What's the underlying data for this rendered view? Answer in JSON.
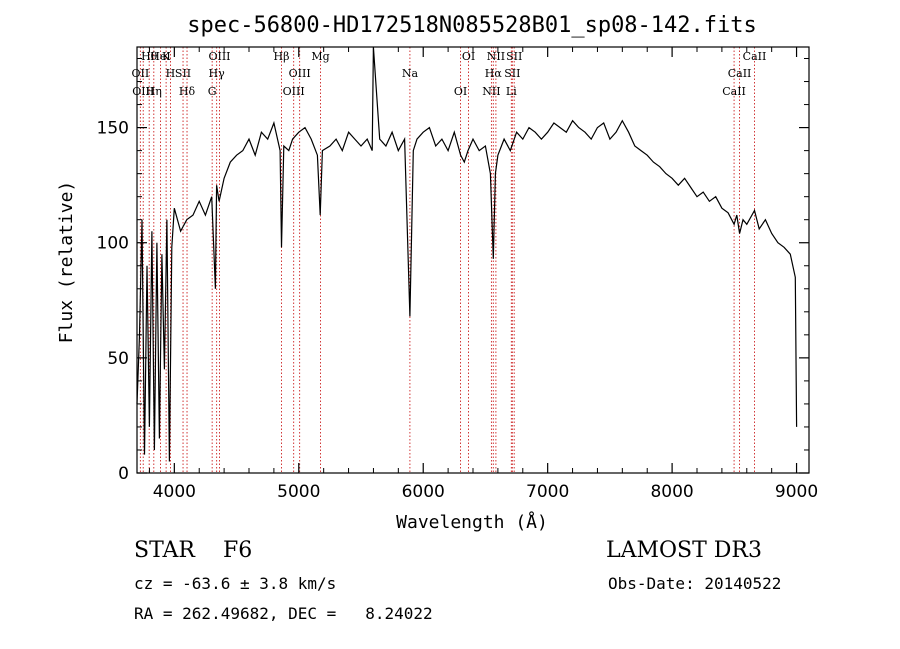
{
  "chart_data": {
    "type": "line",
    "title": "spec-56800-HD172518N085528B01_sp08-142.fits",
    "xlabel": "Wavelength (Å)",
    "ylabel": "Flux (relative)",
    "xlim": [
      3700,
      9100
    ],
    "ylim": [
      0,
      185
    ],
    "xticks": [
      4000,
      5000,
      6000,
      7000,
      8000,
      9000
    ],
    "yticks": [
      0,
      50,
      100,
      150
    ],
    "grid": false,
    "legend": "none",
    "line_color": "#000000",
    "marker_color": "#cc2222",
    "series": [
      {
        "x": [
          3700,
          3720,
          3740,
          3760,
          3780,
          3800,
          3820,
          3840,
          3860,
          3880,
          3900,
          3920,
          3940,
          3960,
          3980,
          4000,
          4050,
          4100,
          4150,
          4200,
          4250,
          4300,
          4330,
          4340,
          4360,
          4400,
          4450,
          4500,
          4550,
          4600,
          4650,
          4700,
          4750,
          4800,
          4850,
          4861,
          4880,
          4920,
          4950,
          5000,
          5050,
          5100,
          5150,
          5172,
          5190,
          5250,
          5300,
          5350,
          5400,
          5450,
          5500,
          5550,
          5590,
          5600,
          5650,
          5700,
          5750,
          5800,
          5850,
          5893,
          5920,
          5950,
          6000,
          6050,
          6100,
          6150,
          6200,
          6250,
          6300,
          6330,
          6360,
          6400,
          6450,
          6500,
          6540,
          6563,
          6580,
          6600,
          6650,
          6700,
          6750,
          6800,
          6850,
          6900,
          6950,
          7000,
          7050,
          7100,
          7150,
          7200,
          7250,
          7300,
          7350,
          7400,
          7450,
          7500,
          7550,
          7600,
          7650,
          7700,
          7750,
          7800,
          7850,
          7900,
          7950,
          8000,
          8050,
          8100,
          8150,
          8200,
          8250,
          8300,
          8350,
          8400,
          8450,
          8498,
          8520,
          8542,
          8570,
          8600,
          8662,
          8700,
          8750,
          8800,
          8850,
          8900,
          8950,
          8990,
          9000
        ],
        "y": [
          30,
          60,
          110,
          8,
          90,
          20,
          105,
          10,
          100,
          15,
          95,
          45,
          110,
          5,
          98,
          115,
          105,
          110,
          112,
          118,
          112,
          120,
          80,
          125,
          118,
          128,
          135,
          138,
          140,
          145,
          138,
          148,
          145,
          152,
          140,
          98,
          142,
          140,
          145,
          148,
          150,
          145,
          138,
          112,
          140,
          142,
          145,
          140,
          148,
          145,
          142,
          145,
          140,
          185,
          145,
          142,
          148,
          140,
          145,
          68,
          140,
          145,
          148,
          150,
          142,
          145,
          140,
          148,
          138,
          135,
          140,
          145,
          140,
          142,
          130,
          93,
          130,
          138,
          145,
          140,
          148,
          145,
          150,
          148,
          145,
          148,
          152,
          150,
          148,
          153,
          150,
          148,
          145,
          150,
          152,
          145,
          148,
          153,
          148,
          142,
          140,
          138,
          135,
          133,
          130,
          128,
          125,
          128,
          124,
          120,
          122,
          118,
          120,
          115,
          113,
          108,
          112,
          104,
          110,
          108,
          114,
          106,
          110,
          104,
          100,
          98,
          95,
          85,
          20
        ]
      }
    ],
    "spectral_lines": [
      {
        "label": "Hθ",
        "wl": 3798
      },
      {
        "label": "OII",
        "wl": 3727
      },
      {
        "label": "OIII",
        "wl": 3750
      },
      {
        "label": "K",
        "wl": 3934
      },
      {
        "label": "H",
        "wl": 3969
      },
      {
        "label": "Hη",
        "wl": 3835
      },
      {
        "label": "HeI",
        "wl": 3889
      },
      {
        "label": "SII",
        "wl": 4070
      },
      {
        "label": "Hδ",
        "wl": 4102
      },
      {
        "label": "OIII",
        "wl": 4363
      },
      {
        "label": "Hγ",
        "wl": 4340
      },
      {
        "label": "G",
        "wl": 4304
      },
      {
        "label": "Hβ",
        "wl": 4861
      },
      {
        "label": "OIII",
        "wl": 5007
      },
      {
        "label": "OIII",
        "wl": 4959
      },
      {
        "label": "Mg",
        "wl": 5175
      },
      {
        "label": "Na",
        "wl": 5893
      },
      {
        "label": "OI",
        "wl": 6300
      },
      {
        "label": "OI",
        "wl": 6364
      },
      {
        "label": "Hα",
        "wl": 6563
      },
      {
        "label": "NII",
        "wl": 6548
      },
      {
        "label": "NII",
        "wl": 6584
      },
      {
        "label": "SII",
        "wl": 6716
      },
      {
        "label": "Li",
        "wl": 6708
      },
      {
        "label": "SII",
        "wl": 6731
      },
      {
        "label": "CaII",
        "wl": 8542
      },
      {
        "label": "CaII",
        "wl": 8498
      },
      {
        "label": "CaII",
        "wl": 8662
      }
    ]
  },
  "info": {
    "obj_class": "STAR    F6",
    "survey": "LAMOST DR3",
    "cz": "cz = -63.6 ± 3.8 km/s",
    "radec": "RA = 262.49682, DEC =   8.24022",
    "obs_date": "Obs-Date: 20140522"
  }
}
